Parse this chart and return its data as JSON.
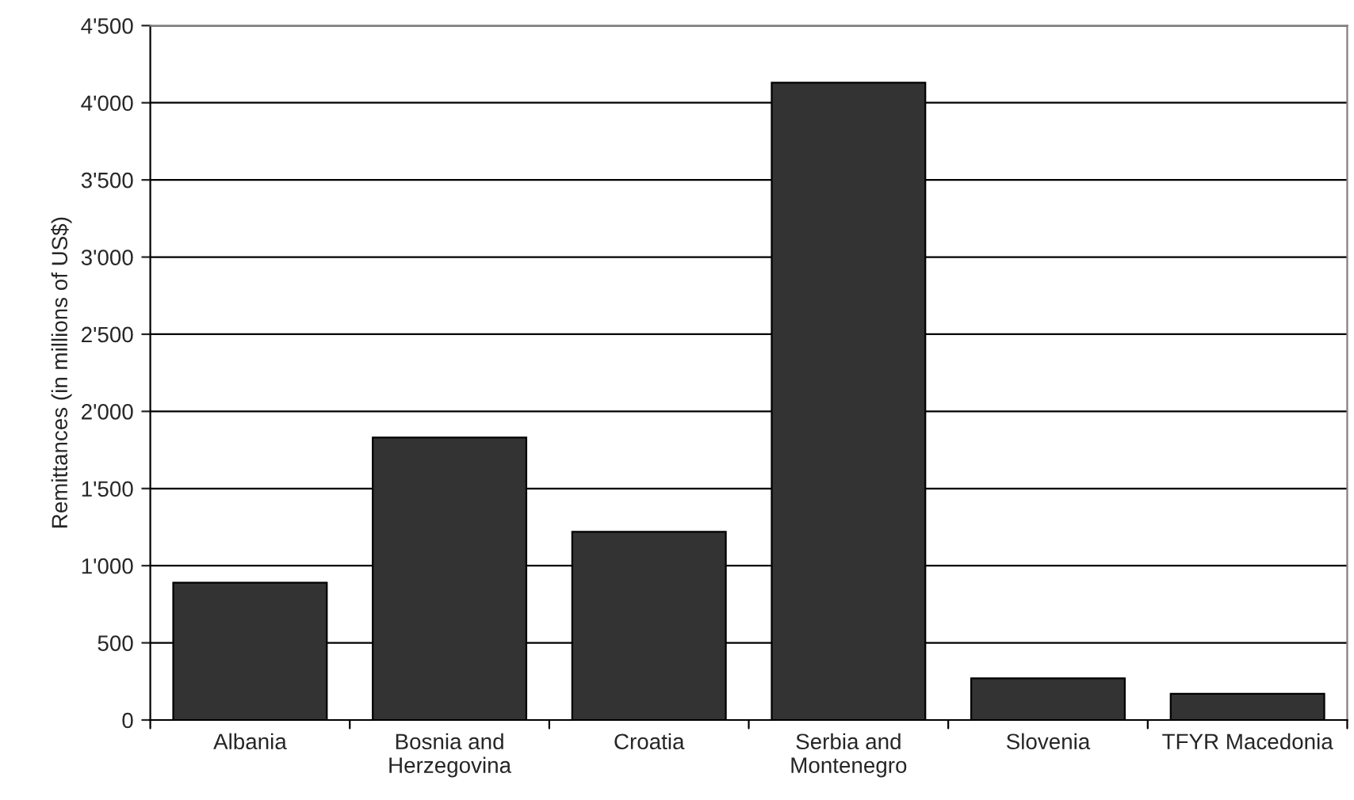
{
  "chart_data": {
    "type": "bar",
    "ylabel": "Remittances (in millions of US$)",
    "categories": [
      "Albania",
      "Bosnia and\nHerzegovina",
      "Croatia",
      "Serbia and\nMontenegro",
      "Slovenia",
      "TFYR Macedonia"
    ],
    "values": [
      890,
      1830,
      1220,
      4130,
      270,
      170
    ],
    "color": "#333333",
    "ylim": [
      0,
      4500
    ],
    "yticks": [
      0,
      500,
      {
        "value": 1000,
        "label": "1'000"
      },
      {
        "value": 1500,
        "label": "1'500"
      },
      {
        "value": 2000,
        "label": "2'000"
      },
      {
        "value": 2500,
        "label": "2'500"
      },
      {
        "value": 3000,
        "label": "3'000"
      },
      {
        "value": 3500,
        "label": "3'500"
      },
      {
        "value": 4000,
        "label": "4'000"
      },
      {
        "value": 4500,
        "label": "4'500"
      }
    ],
    "grid": "y",
    "legend": false
  }
}
